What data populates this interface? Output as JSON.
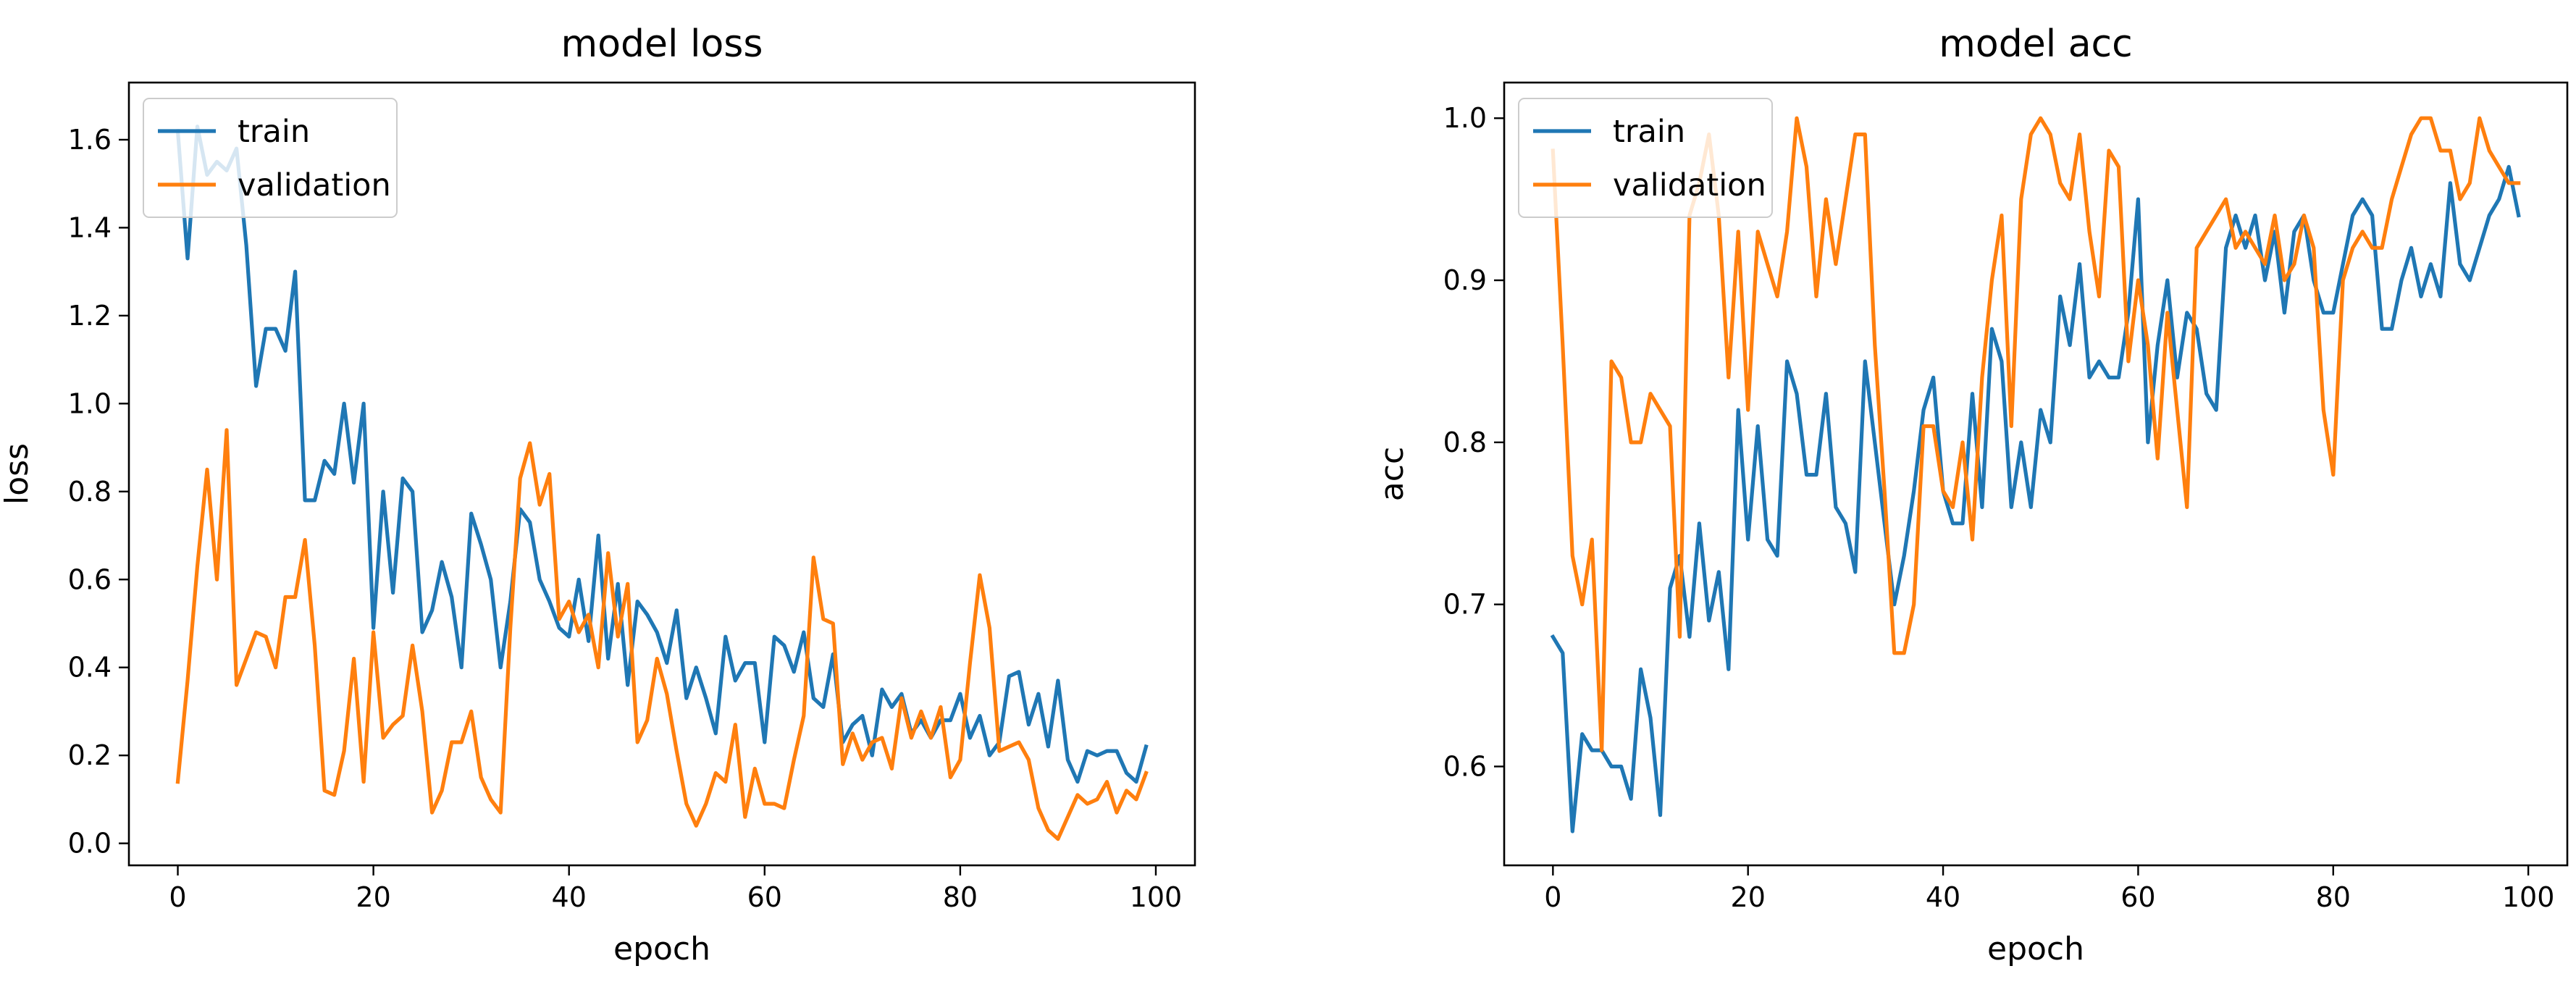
{
  "figure": {
    "background": "#ffffff"
  },
  "series_colors": {
    "train": "#1f77b4",
    "validation": "#ff7f0e"
  },
  "chart_data": [
    {
      "type": "line",
      "title": "model loss",
      "xlabel": "epoch",
      "ylabel": "loss",
      "xlim": [
        -5,
        104
      ],
      "ylim": [
        -0.05,
        1.73
      ],
      "xticks": [
        0,
        20,
        40,
        60,
        80,
        100
      ],
      "xtick_labels": [
        "0",
        "20",
        "40",
        "60",
        "80",
        "100"
      ],
      "yticks": [
        0.0,
        0.2,
        0.4,
        0.6,
        0.8,
        1.0,
        1.2,
        1.4,
        1.6
      ],
      "ytick_labels": [
        "0.0",
        "0.2",
        "0.4",
        "0.6",
        "0.8",
        "1.0",
        "1.2",
        "1.4",
        "1.6"
      ],
      "legend_position": "upper-left",
      "grid": false,
      "series": [
        {
          "name": "train",
          "x_start": 0,
          "values": [
            1.62,
            1.33,
            1.63,
            1.52,
            1.55,
            1.53,
            1.58,
            1.36,
            1.04,
            1.17,
            1.17,
            1.12,
            1.3,
            0.78,
            0.78,
            0.87,
            0.84,
            1.0,
            0.82,
            1.0,
            0.49,
            0.8,
            0.57,
            0.83,
            0.8,
            0.48,
            0.53,
            0.64,
            0.56,
            0.4,
            0.75,
            0.68,
            0.6,
            0.4,
            0.55,
            0.76,
            0.73,
            0.6,
            0.55,
            0.49,
            0.47,
            0.6,
            0.46,
            0.7,
            0.42,
            0.59,
            0.36,
            0.55,
            0.52,
            0.48,
            0.41,
            0.53,
            0.33,
            0.4,
            0.33,
            0.25,
            0.47,
            0.37,
            0.41,
            0.41,
            0.23,
            0.47,
            0.45,
            0.39,
            0.48,
            0.33,
            0.31,
            0.43,
            0.23,
            0.27,
            0.29,
            0.2,
            0.35,
            0.31,
            0.34,
            0.25,
            0.28,
            0.24,
            0.28,
            0.28,
            0.34,
            0.24,
            0.29,
            0.2,
            0.23,
            0.38,
            0.39,
            0.27,
            0.34,
            0.22,
            0.37,
            0.19,
            0.14,
            0.21,
            0.2,
            0.21,
            0.21,
            0.16,
            0.14,
            0.22
          ]
        },
        {
          "name": "validation",
          "x_start": 0,
          "values": [
            0.14,
            0.37,
            0.63,
            0.85,
            0.6,
            0.94,
            0.36,
            0.42,
            0.48,
            0.47,
            0.4,
            0.56,
            0.56,
            0.69,
            0.45,
            0.12,
            0.11,
            0.21,
            0.42,
            0.14,
            0.48,
            0.24,
            0.27,
            0.29,
            0.45,
            0.3,
            0.07,
            0.12,
            0.23,
            0.23,
            0.3,
            0.15,
            0.1,
            0.07,
            0.49,
            0.83,
            0.91,
            0.77,
            0.84,
            0.51,
            0.55,
            0.48,
            0.52,
            0.4,
            0.66,
            0.47,
            0.59,
            0.23,
            0.28,
            0.42,
            0.34,
            0.21,
            0.09,
            0.04,
            0.09,
            0.16,
            0.14,
            0.27,
            0.06,
            0.17,
            0.09,
            0.09,
            0.08,
            0.19,
            0.29,
            0.65,
            0.51,
            0.5,
            0.18,
            0.25,
            0.19,
            0.23,
            0.24,
            0.17,
            0.33,
            0.24,
            0.3,
            0.24,
            0.31,
            0.15,
            0.19,
            0.41,
            0.61,
            0.49,
            0.21,
            0.22,
            0.23,
            0.19,
            0.08,
            0.03,
            0.01,
            0.06,
            0.11,
            0.09,
            0.1,
            0.14,
            0.07,
            0.12,
            0.1,
            0.16
          ]
        }
      ]
    },
    {
      "type": "line",
      "title": "model acc",
      "xlabel": "epoch",
      "ylabel": "acc",
      "xlim": [
        -5,
        104
      ],
      "ylim": [
        0.539,
        1.022
      ],
      "xticks": [
        0,
        20,
        40,
        60,
        80,
        100
      ],
      "xtick_labels": [
        "0",
        "20",
        "40",
        "60",
        "80",
        "100"
      ],
      "yticks": [
        0.6,
        0.7,
        0.8,
        0.9,
        1.0
      ],
      "ytick_labels": [
        "0.6",
        "0.7",
        "0.8",
        "0.9",
        "1.0"
      ],
      "legend_position": "upper-left",
      "grid": false,
      "series": [
        {
          "name": "train",
          "x_start": 0,
          "values": [
            0.68,
            0.67,
            0.56,
            0.62,
            0.61,
            0.61,
            0.6,
            0.6,
            0.58,
            0.66,
            0.63,
            0.57,
            0.71,
            0.73,
            0.68,
            0.75,
            0.69,
            0.72,
            0.66,
            0.82,
            0.74,
            0.81,
            0.74,
            0.73,
            0.85,
            0.83,
            0.78,
            0.78,
            0.83,
            0.76,
            0.75,
            0.72,
            0.85,
            0.8,
            0.75,
            0.7,
            0.73,
            0.77,
            0.82,
            0.84,
            0.77,
            0.75,
            0.75,
            0.83,
            0.76,
            0.87,
            0.85,
            0.76,
            0.8,
            0.76,
            0.82,
            0.8,
            0.89,
            0.86,
            0.91,
            0.84,
            0.85,
            0.84,
            0.84,
            0.88,
            0.95,
            0.8,
            0.86,
            0.9,
            0.84,
            0.88,
            0.87,
            0.83,
            0.82,
            0.92,
            0.94,
            0.92,
            0.94,
            0.9,
            0.93,
            0.88,
            0.93,
            0.94,
            0.9,
            0.88,
            0.88,
            0.91,
            0.94,
            0.95,
            0.94,
            0.87,
            0.87,
            0.9,
            0.92,
            0.89,
            0.91,
            0.89,
            0.96,
            0.91,
            0.9,
            0.92,
            0.94,
            0.95,
            0.97,
            0.94
          ]
        },
        {
          "name": "validation",
          "x_start": 0,
          "values": [
            0.98,
            0.86,
            0.73,
            0.7,
            0.74,
            0.61,
            0.85,
            0.84,
            0.8,
            0.8,
            0.83,
            0.82,
            0.81,
            0.68,
            0.94,
            0.96,
            0.99,
            0.94,
            0.84,
            0.93,
            0.82,
            0.93,
            0.91,
            0.89,
            0.93,
            1.0,
            0.97,
            0.89,
            0.95,
            0.91,
            0.95,
            0.99,
            0.99,
            0.86,
            0.77,
            0.67,
            0.67,
            0.7,
            0.81,
            0.81,
            0.77,
            0.76,
            0.8,
            0.74,
            0.84,
            0.9,
            0.94,
            0.81,
            0.95,
            0.99,
            1.0,
            0.99,
            0.96,
            0.95,
            0.99,
            0.93,
            0.89,
            0.98,
            0.97,
            0.85,
            0.9,
            0.86,
            0.79,
            0.88,
            0.82,
            0.76,
            0.92,
            0.93,
            0.94,
            0.95,
            0.92,
            0.93,
            0.92,
            0.91,
            0.94,
            0.9,
            0.91,
            0.94,
            0.92,
            0.82,
            0.78,
            0.9,
            0.92,
            0.93,
            0.92,
            0.92,
            0.95,
            0.97,
            0.99,
            1.0,
            1.0,
            0.98,
            0.98,
            0.95,
            0.96,
            1.0,
            0.98,
            0.97,
            0.96,
            0.96
          ]
        }
      ]
    }
  ]
}
